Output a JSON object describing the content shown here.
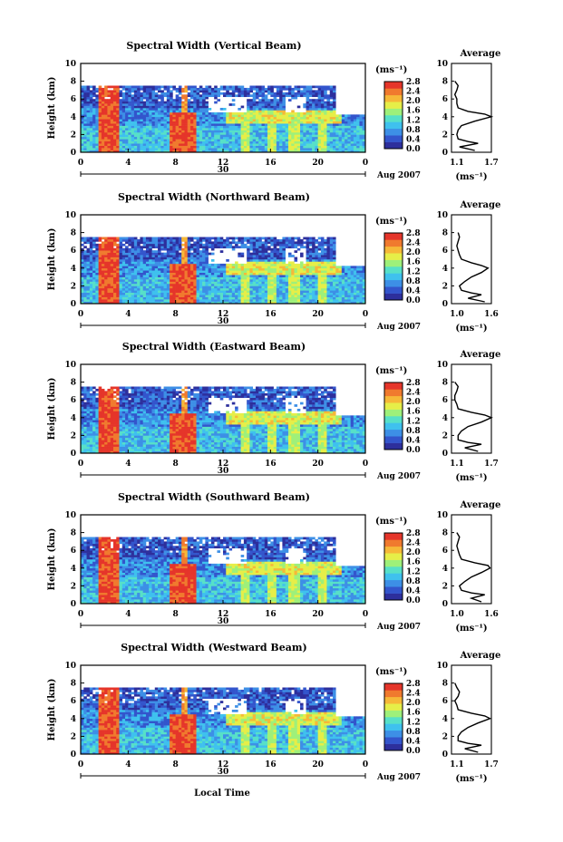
{
  "figure": {
    "xlabel": "Local Time",
    "date_label": "Aug 2007",
    "day_label": "30",
    "cbar_unit": "(ms⁻¹)",
    "avg_title": "Average",
    "avg_xlabel": "(ms⁻¹)",
    "ylabel": "Height (km)",
    "colormap": [
      "#2d2f9c",
      "#3355cc",
      "#3d8fe6",
      "#3fc1ee",
      "#57e0c8",
      "#9ef07a",
      "#e6ee48",
      "#f6b838",
      "#f07a2e",
      "#e5352a"
    ]
  },
  "chart_data": [
    {
      "type": "heatmap",
      "title": "Spectral Width (Vertical Beam)",
      "xticks": [
        "0",
        "4",
        "8",
        "12",
        "16",
        "20",
        "0"
      ],
      "yticks": [
        "0",
        "2",
        "4",
        "6",
        "8",
        "10"
      ],
      "xlim": [
        0,
        24
      ],
      "ylim": [
        0,
        10
      ],
      "cbar_ticks": [
        "0.0",
        "0.4",
        "0.8",
        "1.2",
        "1.6",
        "2.0",
        "2.4",
        "2.8"
      ],
      "avg_xticks": [
        "1.1",
        "1.7"
      ],
      "avg_xlim": [
        1.1,
        1.7
      ],
      "avg_profile": [
        [
          0.2,
          1.45
        ],
        [
          0.6,
          1.22
        ],
        [
          1.0,
          1.5
        ],
        [
          1.2,
          1.35
        ],
        [
          1.5,
          1.2
        ],
        [
          2.0,
          1.18
        ],
        [
          2.5,
          1.2
        ],
        [
          3.0,
          1.25
        ],
        [
          3.5,
          1.45
        ],
        [
          4.0,
          1.7
        ],
        [
          4.3,
          1.6
        ],
        [
          4.6,
          1.35
        ],
        [
          5.0,
          1.2
        ],
        [
          5.5,
          1.18
        ],
        [
          6.0,
          1.18
        ],
        [
          6.5,
          1.15
        ],
        [
          7.0,
          1.18
        ],
        [
          7.5,
          1.2
        ],
        [
          8.0,
          1.15
        ]
      ]
    },
    {
      "type": "heatmap",
      "title": "Spectral Width (Northward Beam)",
      "xticks": [
        "0",
        "4",
        "8",
        "12",
        "16",
        "20",
        "0"
      ],
      "yticks": [
        "0",
        "2",
        "4",
        "6",
        "8",
        "10"
      ],
      "xlim": [
        0,
        24
      ],
      "ylim": [
        0,
        10
      ],
      "cbar_ticks": [
        "0.0",
        "0.4",
        "0.8",
        "1.2",
        "1.6",
        "2.0",
        "2.4",
        "2.8"
      ],
      "avg_xticks": [
        "1.0",
        "1.6"
      ],
      "avg_xlim": [
        1.0,
        1.6
      ],
      "avg_profile": [
        [
          0.2,
          1.5
        ],
        [
          0.6,
          1.25
        ],
        [
          1.0,
          1.45
        ],
        [
          1.2,
          1.3
        ],
        [
          1.5,
          1.15
        ],
        [
          2.0,
          1.12
        ],
        [
          2.5,
          1.2
        ],
        [
          3.0,
          1.3
        ],
        [
          3.5,
          1.45
        ],
        [
          4.0,
          1.55
        ],
        [
          4.3,
          1.45
        ],
        [
          4.6,
          1.3
        ],
        [
          5.0,
          1.15
        ],
        [
          5.5,
          1.12
        ],
        [
          6.0,
          1.1
        ],
        [
          6.5,
          1.08
        ],
        [
          7.0,
          1.1
        ],
        [
          7.5,
          1.12
        ],
        [
          8.0,
          1.1
        ]
      ]
    },
    {
      "type": "heatmap",
      "title": "Spectral Width (Eastward Beam)",
      "xticks": [
        "0",
        "4",
        "8",
        "12",
        "16",
        "20",
        "0"
      ],
      "yticks": [
        "0",
        "2",
        "4",
        "6",
        "8",
        "10"
      ],
      "xlim": [
        0,
        24
      ],
      "ylim": [
        0,
        10
      ],
      "cbar_ticks": [
        "0.0",
        "0.4",
        "0.8",
        "1.2",
        "1.6",
        "2.0",
        "2.4",
        "2.8"
      ],
      "avg_xticks": [
        "1.1",
        "1.7"
      ],
      "avg_xlim": [
        1.1,
        1.7
      ],
      "avg_profile": [
        [
          0.2,
          1.5
        ],
        [
          0.6,
          1.3
        ],
        [
          1.0,
          1.55
        ],
        [
          1.2,
          1.35
        ],
        [
          1.5,
          1.2
        ],
        [
          2.0,
          1.2
        ],
        [
          2.5,
          1.25
        ],
        [
          3.0,
          1.35
        ],
        [
          3.5,
          1.55
        ],
        [
          4.0,
          1.7
        ],
        [
          4.3,
          1.6
        ],
        [
          4.6,
          1.4
        ],
        [
          5.0,
          1.2
        ],
        [
          5.5,
          1.18
        ],
        [
          6.0,
          1.15
        ],
        [
          6.5,
          1.15
        ],
        [
          7.0,
          1.18
        ],
        [
          7.5,
          1.2
        ],
        [
          8.0,
          1.15
        ]
      ]
    },
    {
      "type": "heatmap",
      "title": "Spectral Width (Southward Beam)",
      "xticks": [
        "0",
        "4",
        "8",
        "12",
        "16",
        "20",
        "0"
      ],
      "yticks": [
        "0",
        "2",
        "4",
        "6",
        "8",
        "10"
      ],
      "xlim": [
        0,
        24
      ],
      "ylim": [
        0,
        10
      ],
      "cbar_ticks": [
        "0.0",
        "0.4",
        "0.8",
        "1.2",
        "1.6",
        "2.0",
        "2.4",
        "2.8"
      ],
      "avg_xticks": [
        "1.0",
        "1.6"
      ],
      "avg_xlim": [
        1.0,
        1.6
      ],
      "avg_profile": [
        [
          0.2,
          1.45
        ],
        [
          0.6,
          1.3
        ],
        [
          1.0,
          1.5
        ],
        [
          1.2,
          1.3
        ],
        [
          1.5,
          1.15
        ],
        [
          2.0,
          1.12
        ],
        [
          2.5,
          1.2
        ],
        [
          3.0,
          1.3
        ],
        [
          3.5,
          1.45
        ],
        [
          4.0,
          1.58
        ],
        [
          4.3,
          1.55
        ],
        [
          4.6,
          1.35
        ],
        [
          5.0,
          1.15
        ],
        [
          5.5,
          1.12
        ],
        [
          6.0,
          1.1
        ],
        [
          6.5,
          1.08
        ],
        [
          7.0,
          1.1
        ],
        [
          7.5,
          1.12
        ],
        [
          8.0,
          1.08
        ]
      ]
    },
    {
      "type": "heatmap",
      "title": "Spectral Width (Westward Beam)",
      "xticks": [
        "0",
        "4",
        "8",
        "12",
        "16",
        "20",
        "0"
      ],
      "yticks": [
        "0",
        "2",
        "4",
        "6",
        "8",
        "10"
      ],
      "xlim": [
        0,
        24
      ],
      "ylim": [
        0,
        10
      ],
      "cbar_ticks": [
        "0.0",
        "0.4",
        "0.8",
        "1.2",
        "1.6",
        "2.0",
        "2.4",
        "2.8"
      ],
      "avg_xticks": [
        "1.1",
        "1.7"
      ],
      "avg_xlim": [
        1.1,
        1.7
      ],
      "avg_profile": [
        [
          0.2,
          1.5
        ],
        [
          0.6,
          1.3
        ],
        [
          1.0,
          1.55
        ],
        [
          1.2,
          1.35
        ],
        [
          1.5,
          1.2
        ],
        [
          2.0,
          1.2
        ],
        [
          2.5,
          1.25
        ],
        [
          3.0,
          1.35
        ],
        [
          3.5,
          1.5
        ],
        [
          4.0,
          1.68
        ],
        [
          4.3,
          1.6
        ],
        [
          4.6,
          1.4
        ],
        [
          5.0,
          1.2
        ],
        [
          5.5,
          1.18
        ],
        [
          6.0,
          1.15
        ],
        [
          6.5,
          1.2
        ],
        [
          7.0,
          1.22
        ],
        [
          7.5,
          1.18
        ],
        [
          8.0,
          1.15
        ]
      ]
    }
  ]
}
